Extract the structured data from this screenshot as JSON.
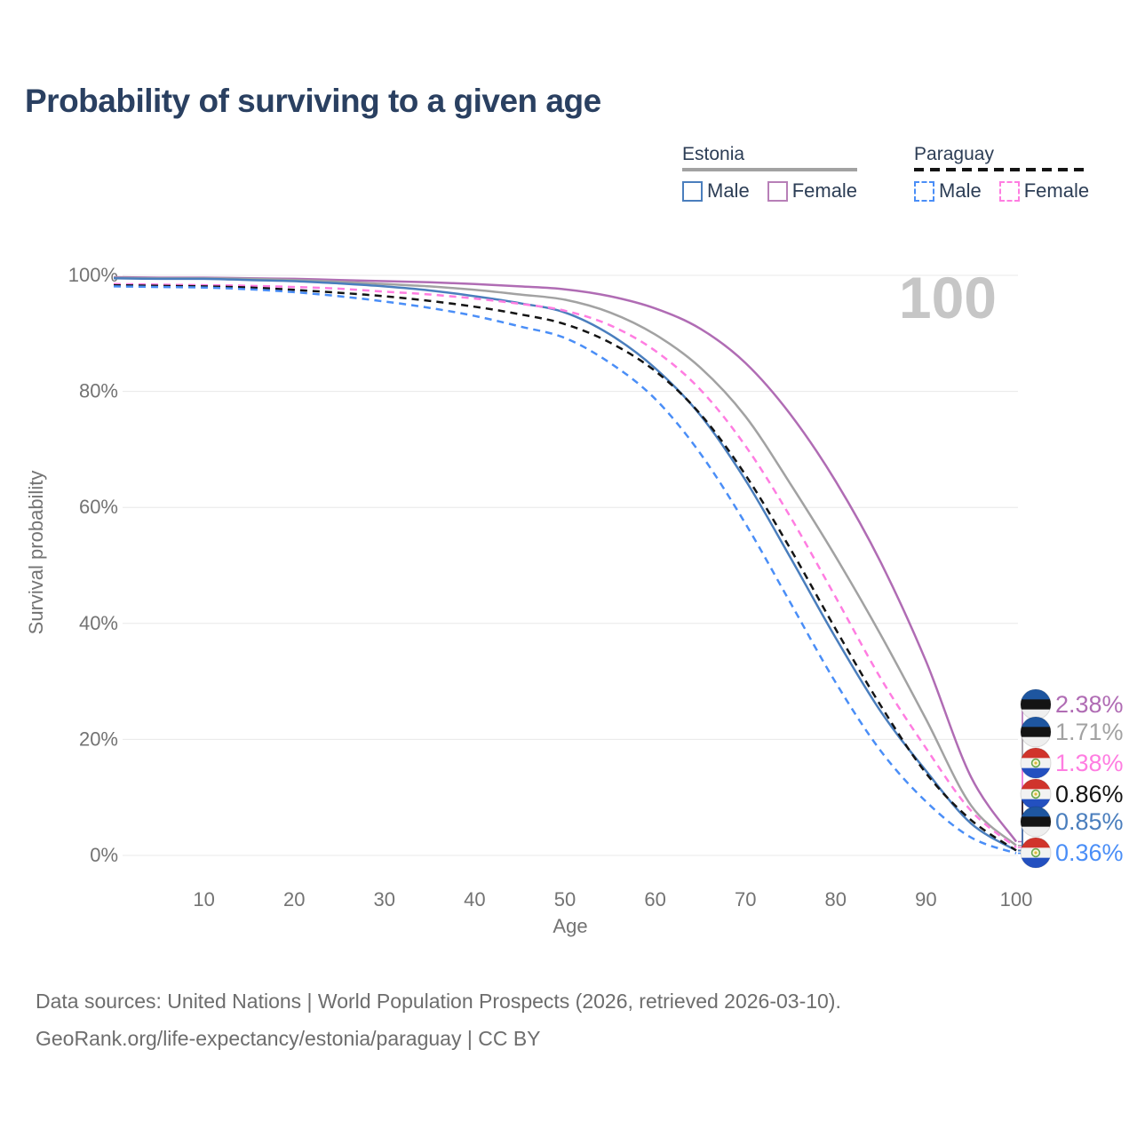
{
  "header": {
    "title": "Probability of surviving to a given age"
  },
  "legend": {
    "groups": [
      {
        "label": "Estonia",
        "underline_style": "solid",
        "underline_color": "#a2a2a2",
        "items": [
          {
            "label": "Male",
            "box_color": "#4a7ebd",
            "box_style": "solid"
          },
          {
            "label": "Female",
            "box_color": "#b77fb7",
            "box_style": "solid"
          }
        ]
      },
      {
        "label": "Paraguay",
        "underline_style": "dashed",
        "underline_color": "#141414",
        "items": [
          {
            "label": "Male",
            "box_color": "#4a8ef7",
            "box_style": "dashed"
          },
          {
            "label": "Female",
            "box_color": "#ff7de1",
            "box_style": "dashed"
          }
        ]
      }
    ]
  },
  "chart_data": {
    "type": "line",
    "title": "Probability of surviving to a given age",
    "xlabel": "Age",
    "ylabel": "Survival probability",
    "xlim": [
      0,
      100
    ],
    "ylim": [
      0,
      100
    ],
    "grid": "horizontal",
    "legend_position": "top-right",
    "hover_age_label": "100",
    "x_ticks": [
      10,
      20,
      30,
      40,
      50,
      60,
      70,
      80,
      90,
      100
    ],
    "y_ticks": {
      "values": [
        0,
        20,
        40,
        60,
        80,
        100
      ],
      "labels": [
        "0%",
        "20%",
        "40%",
        "60%",
        "80%",
        "100%"
      ]
    },
    "x": [
      0,
      5,
      10,
      15,
      20,
      25,
      30,
      35,
      40,
      45,
      50,
      55,
      60,
      65,
      70,
      75,
      80,
      85,
      90,
      95,
      100
    ],
    "series": [
      {
        "name": "Estonia Female",
        "country": "Estonia",
        "sex": "Female",
        "color": "#b06cb4",
        "dash": "solid",
        "end_label": "2.38%",
        "flag": "ee",
        "values": [
          99.7,
          99.6,
          99.6,
          99.5,
          99.4,
          99.2,
          99.0,
          98.8,
          98.5,
          98.1,
          97.6,
          96.4,
          94.3,
          90.8,
          84.9,
          76.0,
          64.5,
          50.5,
          33.5,
          13.5,
          2.38
        ]
      },
      {
        "name": "Estonia",
        "country": "Estonia",
        "sex": "Both",
        "color": "#a2a2a2",
        "dash": "solid",
        "end_label": "1.71%",
        "flag": "ee",
        "values": [
          99.6,
          99.5,
          99.5,
          99.4,
          99.2,
          98.9,
          98.5,
          98.1,
          97.5,
          96.7,
          95.8,
          93.6,
          89.8,
          84.1,
          75.7,
          64.0,
          51.5,
          38.0,
          23.5,
          8.6,
          1.71
        ]
      },
      {
        "name": "Estonia Male",
        "country": "Estonia",
        "sex": "Male",
        "color": "#4a7ebd",
        "dash": "solid",
        "end_label": "0.85%",
        "flag": "ee",
        "values": [
          99.5,
          99.4,
          99.4,
          99.2,
          99.0,
          98.6,
          98.1,
          97.4,
          96.4,
          95.2,
          93.6,
          89.8,
          84.0,
          75.9,
          64.7,
          51.3,
          37.5,
          24.8,
          14.6,
          5.5,
          0.85
        ]
      },
      {
        "name": "Paraguay Female",
        "country": "Paraguay",
        "sex": "Female",
        "color": "#ff7de1",
        "dash": "dashed",
        "end_label": "1.38%",
        "flag": "py",
        "values": [
          98.5,
          98.4,
          98.3,
          98.2,
          98.0,
          97.7,
          97.2,
          96.7,
          96.0,
          95.1,
          93.9,
          91.4,
          87.0,
          80.3,
          70.6,
          58.3,
          44.5,
          30.5,
          18.5,
          7.7,
          1.38
        ]
      },
      {
        "name": "Paraguay",
        "country": "Paraguay",
        "sex": "Both",
        "color": "#141414",
        "dash": "dashed",
        "end_label": "0.86%",
        "flag": "py",
        "values": [
          98.3,
          98.2,
          98.1,
          97.9,
          97.5,
          97.0,
          96.4,
          95.6,
          94.6,
          93.3,
          91.6,
          88.4,
          83.5,
          76.1,
          65.6,
          52.8,
          39.0,
          25.8,
          14.2,
          6.1,
          0.86
        ]
      },
      {
        "name": "Paraguay Male",
        "country": "Paraguay",
        "sex": "Male",
        "color": "#4a8ef7",
        "dash": "dashed",
        "end_label": "0.36%",
        "flag": "py",
        "values": [
          98.1,
          98.0,
          97.9,
          97.6,
          97.1,
          96.4,
          95.5,
          94.4,
          93.0,
          91.2,
          89.2,
          84.9,
          78.7,
          69.3,
          57.2,
          43.5,
          29.8,
          18.0,
          9.3,
          3.1,
          0.36
        ]
      }
    ],
    "end_label_order": [
      "Estonia Female",
      "Estonia",
      "Paraguay Female",
      "Paraguay",
      "Estonia Male",
      "Paraguay Male"
    ],
    "flag_colors": {
      "ee": [
        "#1e56a0",
        "#141414",
        "#efefef"
      ],
      "py": [
        "#d0342c",
        "#f2f2f2",
        "#2350c0"
      ]
    }
  },
  "footer": {
    "line1": "Data sources: United Nations | World Population Prospects (2026, retrieved 2026-03-10).",
    "line2": "GeoRank.org/life-expectancy/estonia/paraguay | CC BY"
  }
}
